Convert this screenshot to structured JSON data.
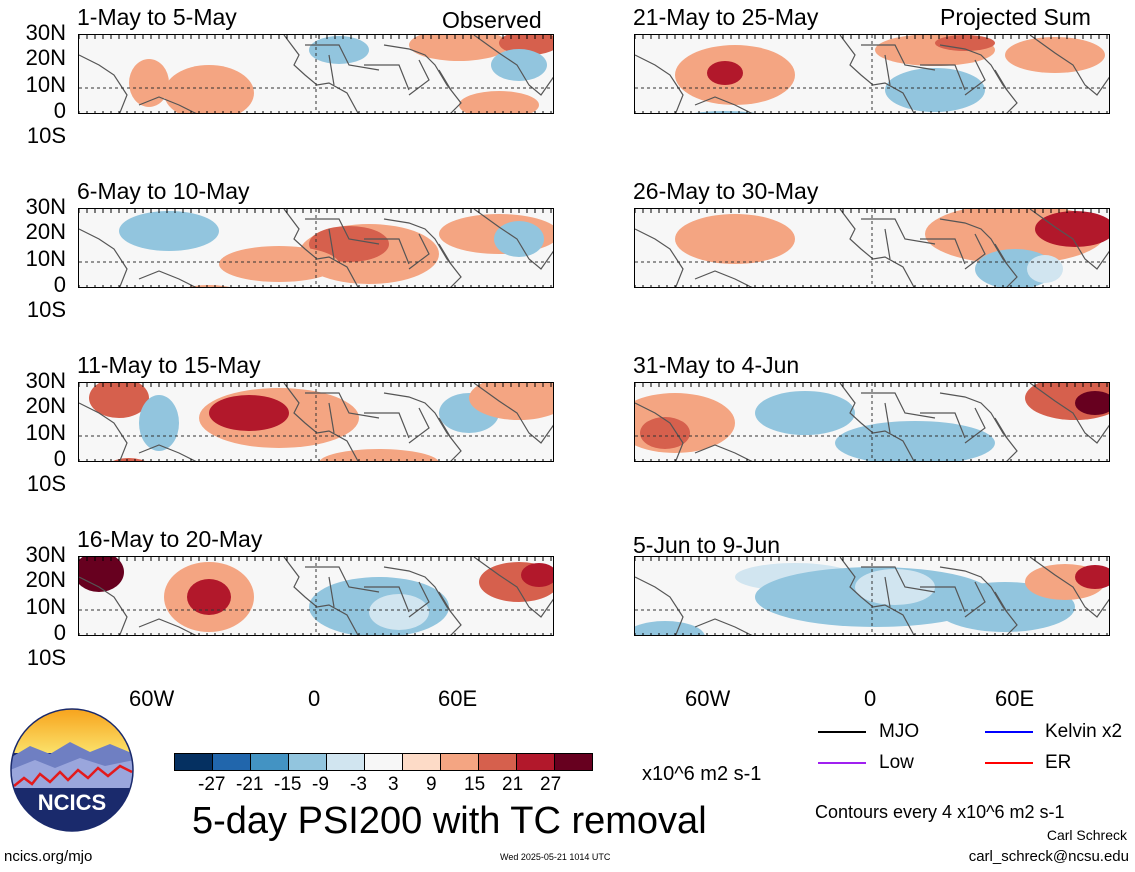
{
  "header": {
    "observed_label": "Observed",
    "projected_label": "Projected Sum"
  },
  "panels_left": [
    {
      "title": "1-May to 5-May"
    },
    {
      "title": "6-May to 10-May"
    },
    {
      "title": "11-May to 15-May"
    },
    {
      "title": "16-May to 20-May"
    }
  ],
  "panels_right": [
    {
      "title": "21-May to 25-May"
    },
    {
      "title": "26-May to 30-May"
    },
    {
      "title": "31-May to 4-Jun"
    },
    {
      "title": "5-Jun to 9-Jun"
    }
  ],
  "axes": {
    "lat_labels": [
      "30N",
      "20N",
      "10N",
      "0",
      "10S"
    ],
    "lon_labels": [
      "60W",
      "0",
      "60E"
    ]
  },
  "colorbar": {
    "colors": [
      "#053061",
      "#2166ac",
      "#4393c3",
      "#92c5de",
      "#d1e5f0",
      "#f7f7f7",
      "#fddbc7",
      "#f4a582",
      "#d6604d",
      "#b2182b",
      "#67001f"
    ],
    "tick_labels": [
      "-27",
      "-21",
      "-15",
      "-9",
      "-3",
      "3",
      "9",
      "15",
      "21",
      "27"
    ],
    "units": "x10^6 m2 s-1"
  },
  "title": "5-day PSI200 with TC removal",
  "legend": {
    "items": [
      {
        "label": "MJO",
        "color": "#000000"
      },
      {
        "label": "Kelvin x2",
        "color": "#0000ff"
      },
      {
        "label": "Low",
        "color": "#a020f0"
      },
      {
        "label": "ER",
        "color": "#ff0000"
      }
    ],
    "contour_note": "Contours every 4 x10^6 m2 s-1"
  },
  "footer": {
    "author": "Carl Schreck",
    "email": "carl_schreck@ncsu.edu",
    "url": "ncics.org/mjo",
    "timestamp": "Wed 2025-05-21 1014 UTC"
  },
  "logo": {
    "text": "NCICS"
  }
}
